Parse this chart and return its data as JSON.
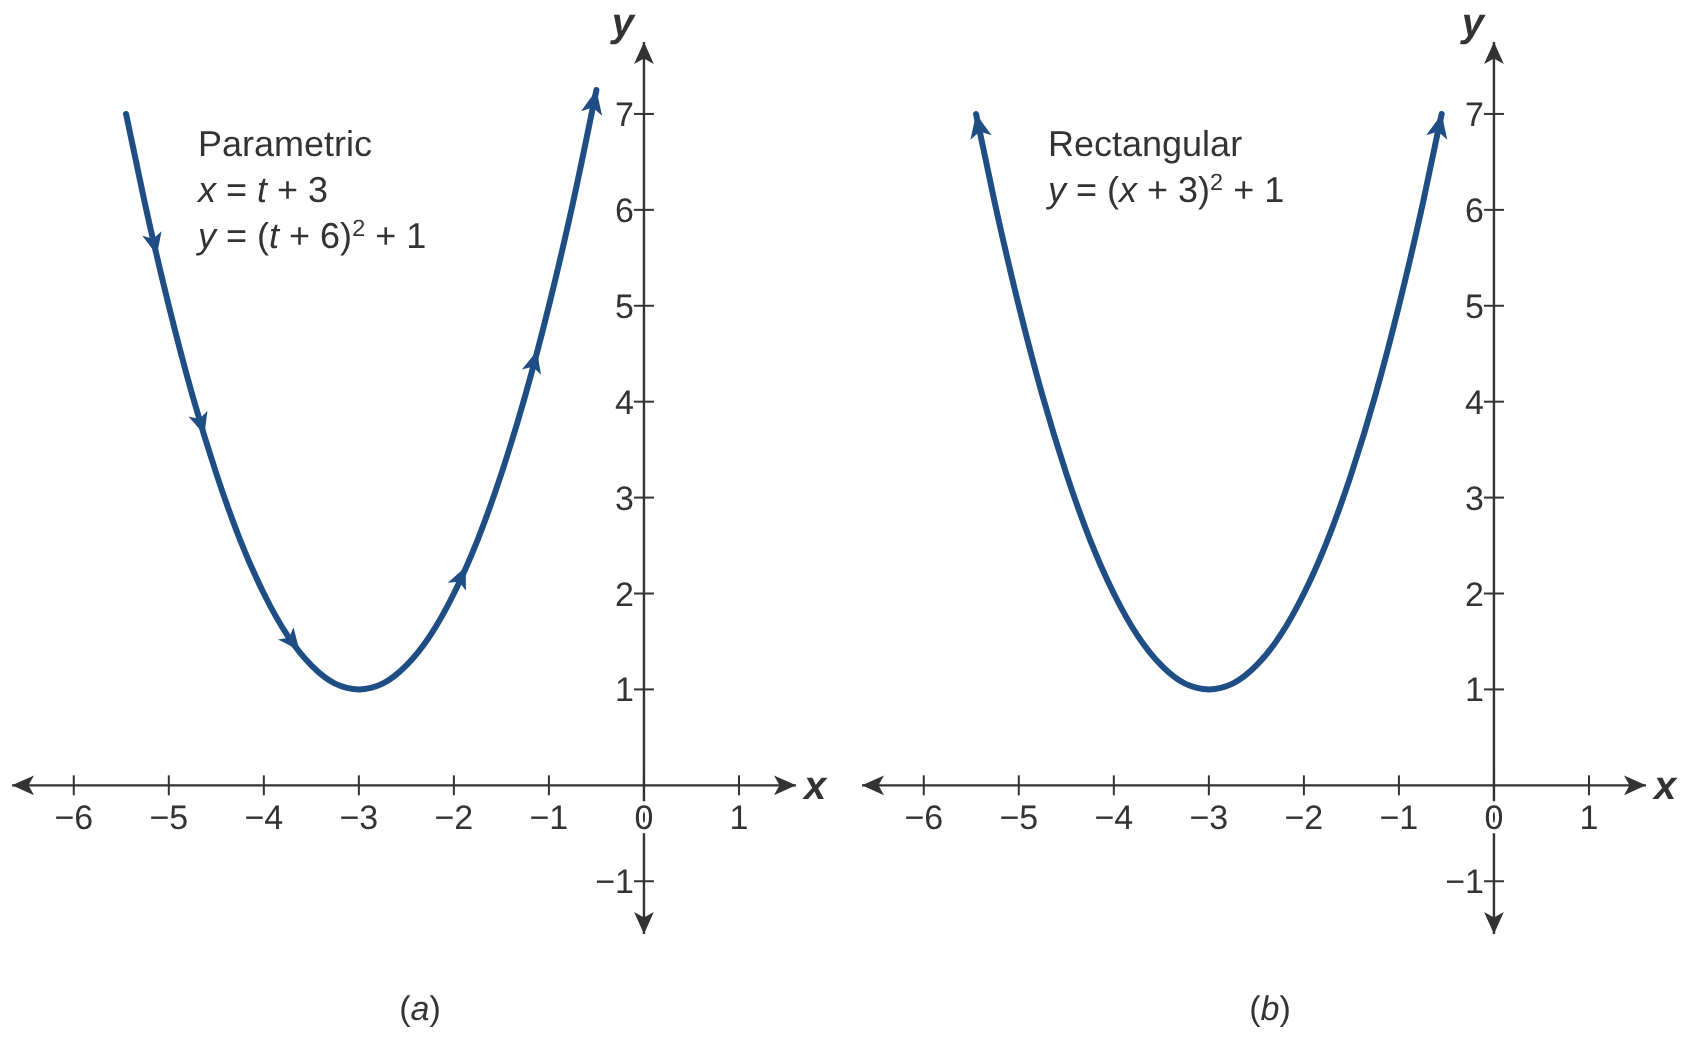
{
  "chart_data": [
    {
      "type": "line",
      "title": "(a)",
      "xlabel": "x",
      "ylabel": "y",
      "annotations": [
        "Parametric",
        "x = t + 3",
        "y = (t + 6)$^{2}$ + 1"
      ],
      "xlim": [
        -6.65,
        1.6
      ],
      "ylim": [
        -1.55,
        7.75
      ],
      "xticks": [
        {
          "value": -6,
          "label": "−6"
        },
        {
          "value": -5,
          "label": "−5"
        },
        {
          "value": -4,
          "label": "−4"
        },
        {
          "value": -3,
          "label": "−3"
        },
        {
          "value": -2,
          "label": "−2"
        },
        {
          "value": -1,
          "label": "−1"
        },
        {
          "value": 0,
          "label": "0"
        },
        {
          "value": 1,
          "label": "1"
        }
      ],
      "yticks": [
        {
          "value": -1,
          "label": "−1"
        },
        1,
        2,
        3,
        4,
        5,
        6,
        7
      ],
      "grid": false,
      "line_style": "solid",
      "series": [
        {
          "color": "#1f4e85",
          "x": [
            -5.45,
            -5.25,
            -5,
            -4.75,
            -4.5,
            -4.25,
            -4,
            -3.75,
            -3.5,
            -3.25,
            -3,
            -2.75,
            -2.5,
            -2.25,
            -2,
            -1.75,
            -1.5,
            -1.25,
            -1,
            -0.75,
            -0.5
          ],
          "values": [
            7.0,
            6.06,
            5,
            4.06,
            3.25,
            2.56,
            2,
            1.56,
            1.25,
            1.06,
            1,
            1.06,
            1.25,
            1.56,
            2,
            2.56,
            3.25,
            4.06,
            5,
            6.06,
            7.25
          ]
        }
      ]
    },
    {
      "type": "line",
      "title": "(b)",
      "xlabel": "x",
      "ylabel": "y",
      "annotations": [
        "Rectangular",
        "y = (x + 3)$^{2}$ + 1"
      ],
      "xlim": [
        -6.65,
        1.6
      ],
      "ylim": [
        -1.55,
        7.75
      ],
      "xticks": [
        {
          "value": -6,
          "label": "−6"
        },
        {
          "value": -5,
          "label": "−5"
        },
        {
          "value": -4,
          "label": "−4"
        },
        {
          "value": -3,
          "label": "−3"
        },
        {
          "value": -2,
          "label": "−2"
        },
        {
          "value": -1,
          "label": "−1"
        },
        {
          "value": 0,
          "label": "0"
        },
        {
          "value": 1,
          "label": "1"
        }
      ],
      "yticks": [
        {
          "value": -1,
          "label": "−1"
        },
        1,
        2,
        3,
        4,
        5,
        6,
        7
      ],
      "grid": false,
      "line_style": "solid",
      "series": [
        {
          "color": "#1f4e85",
          "x": [
            -5.45,
            -5.25,
            -5,
            -4.75,
            -4.5,
            -4.25,
            -4,
            -3.75,
            -3.5,
            -3.25,
            -3,
            -2.75,
            -2.5,
            -2.25,
            -2,
            -1.75,
            -1.5,
            -1.25,
            -1,
            -0.75,
            -0.55
          ],
          "values": [
            7.0,
            6.06,
            5,
            4.06,
            3.25,
            2.56,
            2,
            1.56,
            1.25,
            1.06,
            1,
            1.06,
            1.25,
            1.56,
            2,
            2.56,
            3.25,
            4.06,
            5,
            6.06,
            7.0
          ]
        }
      ]
    }
  ]
}
